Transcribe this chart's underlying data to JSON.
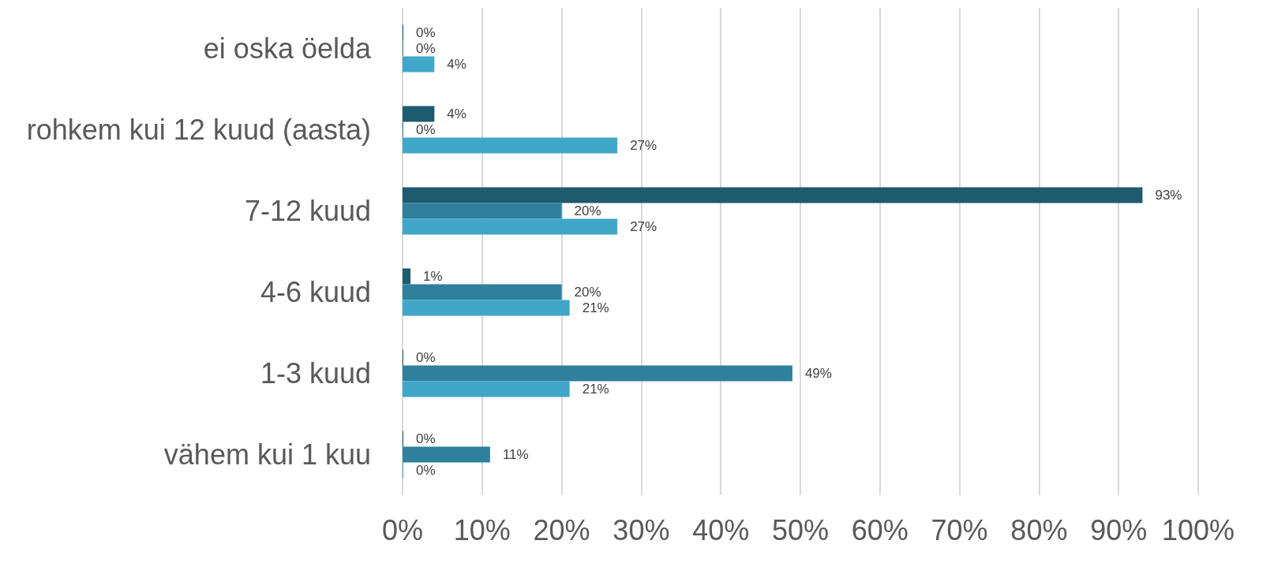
{
  "chart_data": {
    "type": "bar",
    "orientation": "horizontal",
    "categories": [
      "ei oska öelda",
      "rohkem kui 12 kuud (aasta)",
      "7-12 kuud",
      "4-6 kuud",
      "1-3 kuud",
      "vähem kui 1 kuu"
    ],
    "series": [
      {
        "color": "#1f5a6e",
        "values": [
          0,
          4,
          93,
          1,
          0,
          0
        ],
        "value_labels": [
          "0%",
          "4%",
          "93%",
          "1%",
          "0%",
          "0%"
        ]
      },
      {
        "color": "#2e809c",
        "values": [
          0,
          0,
          20,
          20,
          49,
          11
        ],
        "value_labels": [
          "0%",
          "0%",
          "20%",
          "20%",
          "49%",
          "11%"
        ]
      },
      {
        "color": "#41a7c9",
        "values": [
          4,
          27,
          27,
          21,
          21,
          0
        ],
        "value_labels": [
          "4%",
          "27%",
          "27%",
          "21%",
          "21%",
          "0%"
        ]
      }
    ],
    "xlim": [
      0,
      100
    ],
    "xticks": [
      {
        "value": 0,
        "label": "0%"
      },
      {
        "value": 10,
        "label": "10%"
      },
      {
        "value": 20,
        "label": "20%"
      },
      {
        "value": 30,
        "label": "30%"
      },
      {
        "value": 40,
        "label": "40%"
      },
      {
        "value": 50,
        "label": "50%"
      },
      {
        "value": 60,
        "label": "60%"
      },
      {
        "value": 70,
        "label": "70%"
      },
      {
        "value": 80,
        "label": "80%"
      },
      {
        "value": 90,
        "label": "90%"
      },
      {
        "value": 100,
        "label": "100%"
      }
    ],
    "grid": "x"
  }
}
